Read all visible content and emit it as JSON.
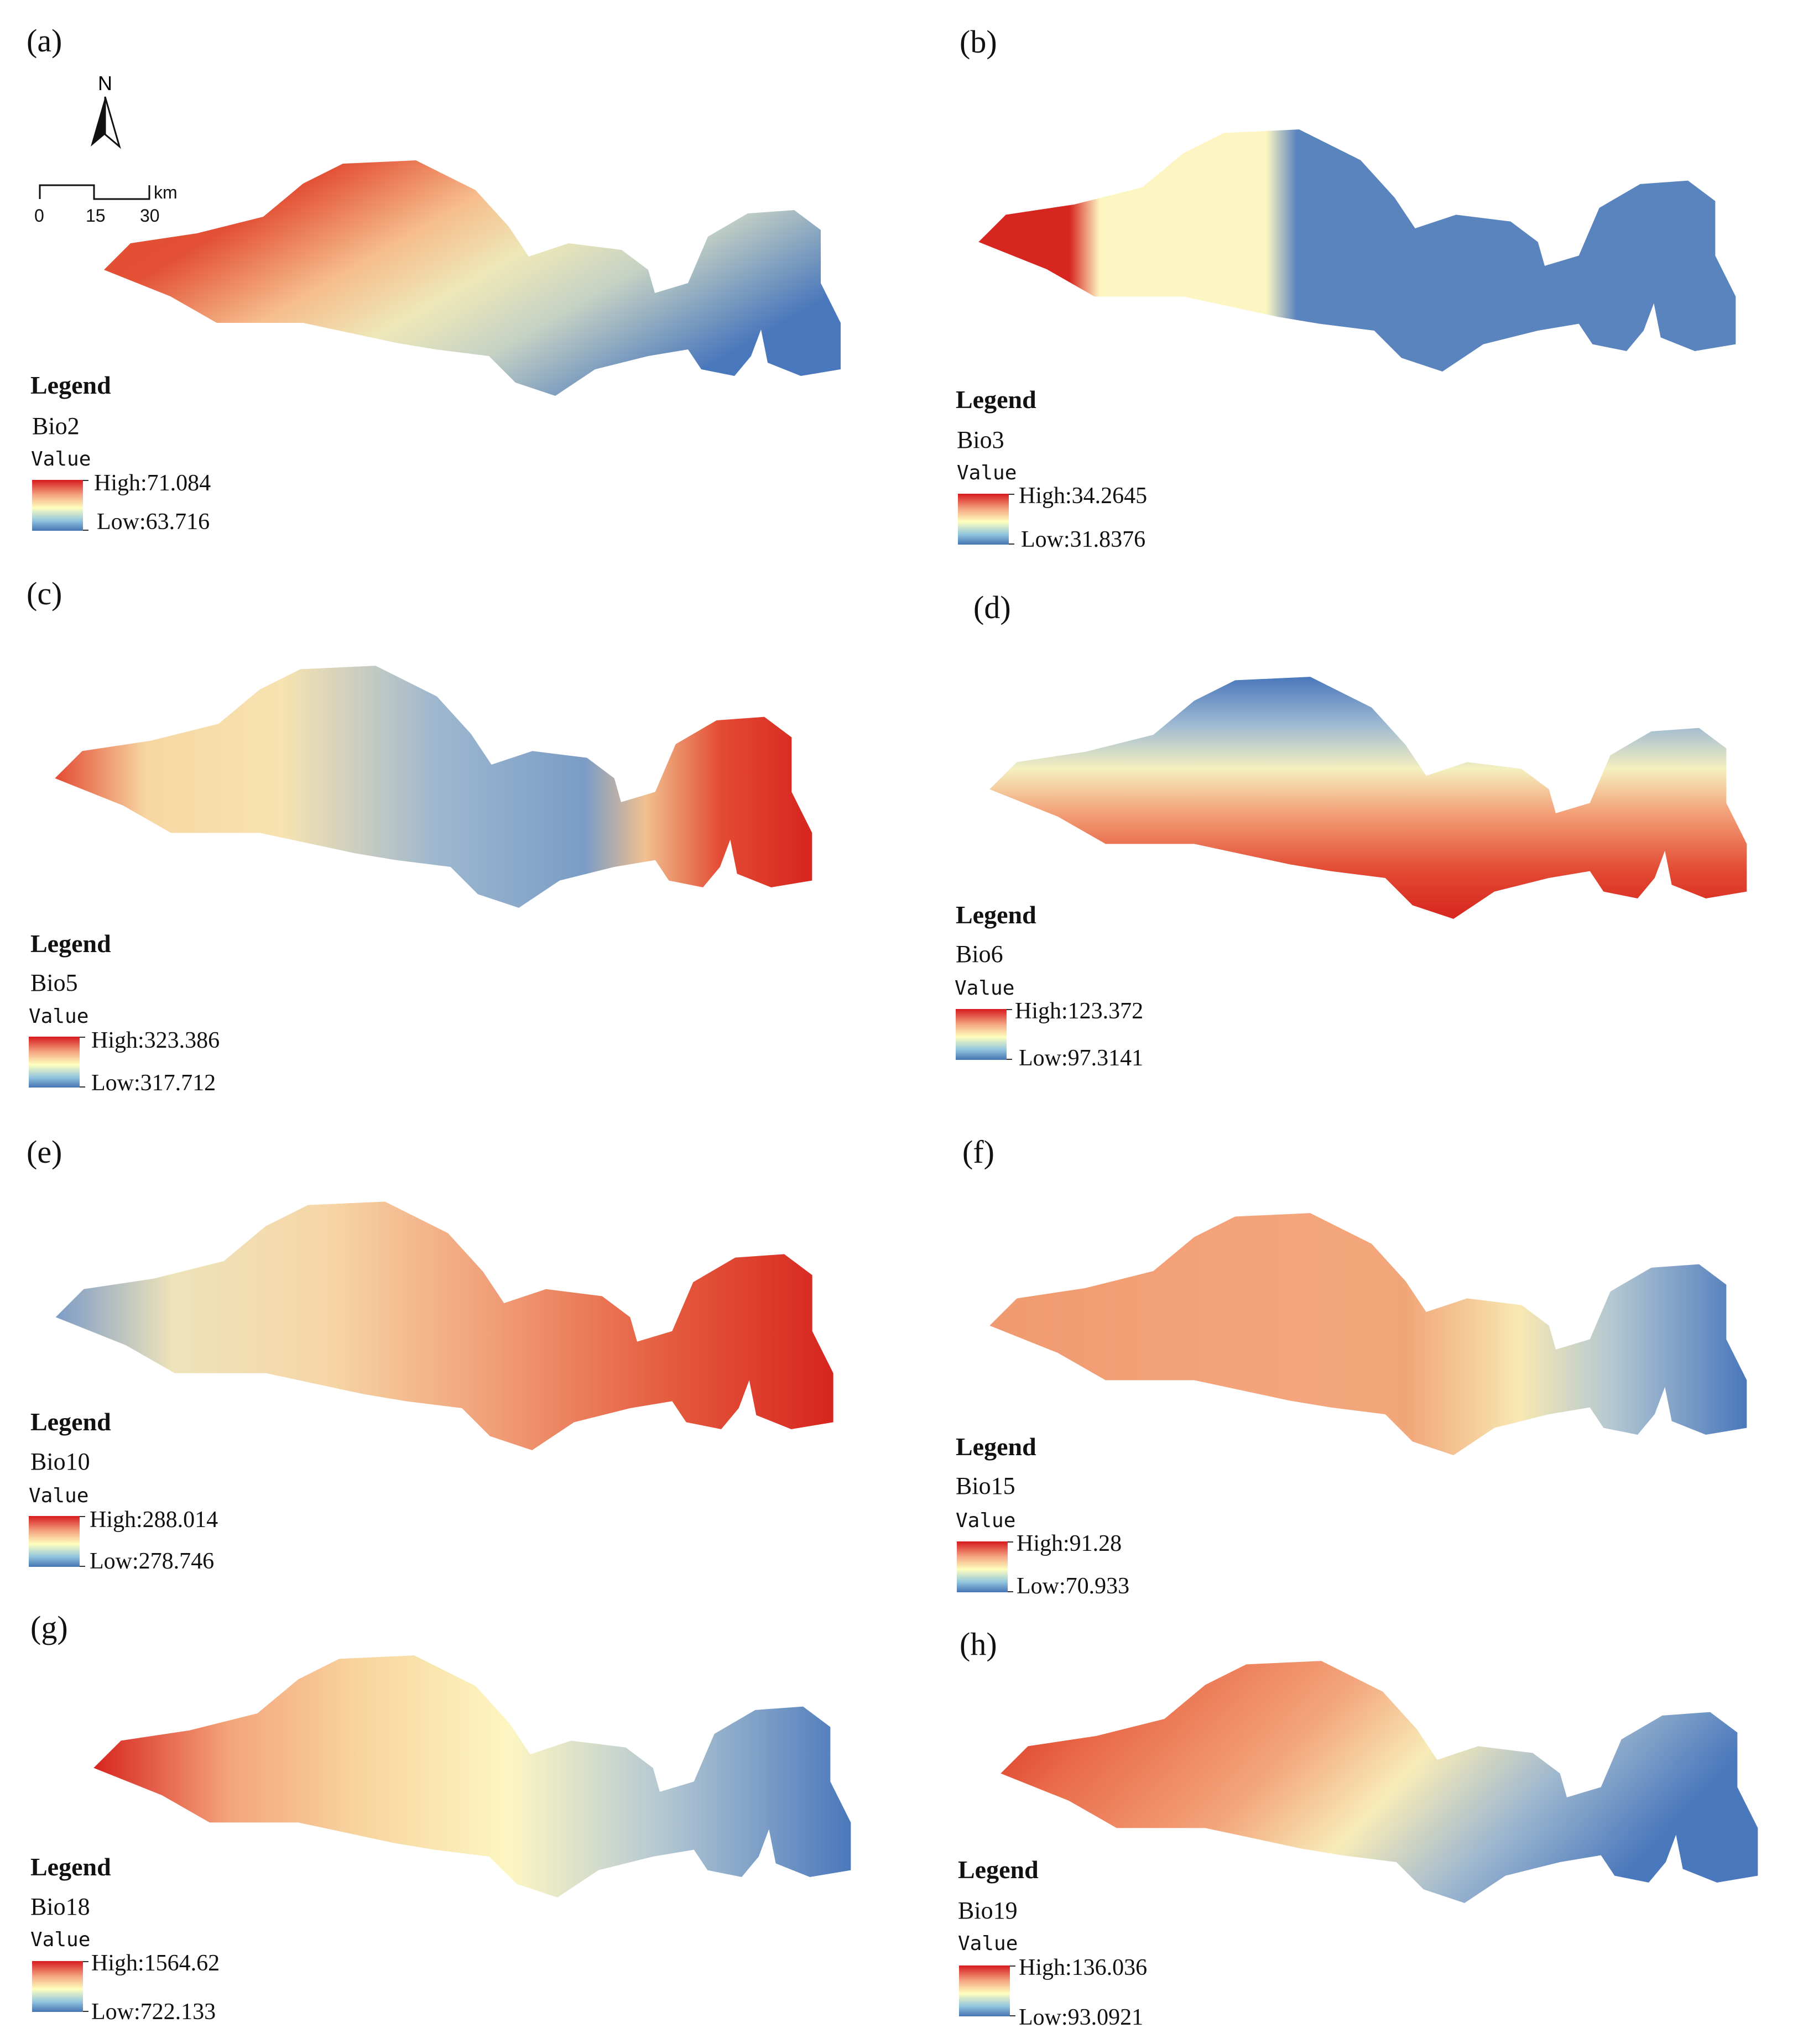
{
  "legend_heading": "Legend",
  "value_heading": "Value",
  "north_label": "N",
  "scale": {
    "ticks": [
      "0",
      "15",
      "30"
    ],
    "unit": "km"
  },
  "colors": {
    "high": "#d7191c",
    "mid": "#ffffbf",
    "low": "#4575b4"
  },
  "panels": [
    {
      "label": "(a)",
      "variable": "Bio2",
      "high": "High:71.084",
      "low": "Low:63.716"
    },
    {
      "label": "(b)",
      "variable": "Bio3",
      "high": "High:34.2645",
      "low": "Low:31.8376"
    },
    {
      "label": "(c)",
      "variable": "Bio5",
      "high": "High:323.386",
      "low": "Low:317.712"
    },
    {
      "label": "(d)",
      "variable": "Bio6",
      "high": "High:123.372",
      "low": "Low:97.3141"
    },
    {
      "label": "(e)",
      "variable": "Bio10",
      "high": "High:288.014",
      "low": "Low:278.746"
    },
    {
      "label": "(f)",
      "variable": "Bio15",
      "high": "High:91.28",
      "low": "Low:70.933"
    },
    {
      "label": "(g)",
      "variable": "Bio18",
      "high": "High:1564.62",
      "low": "Low:722.133"
    },
    {
      "label": "(h)",
      "variable": "Bio19",
      "high": "High:136.036",
      "low": "Low:93.0921"
    }
  ]
}
